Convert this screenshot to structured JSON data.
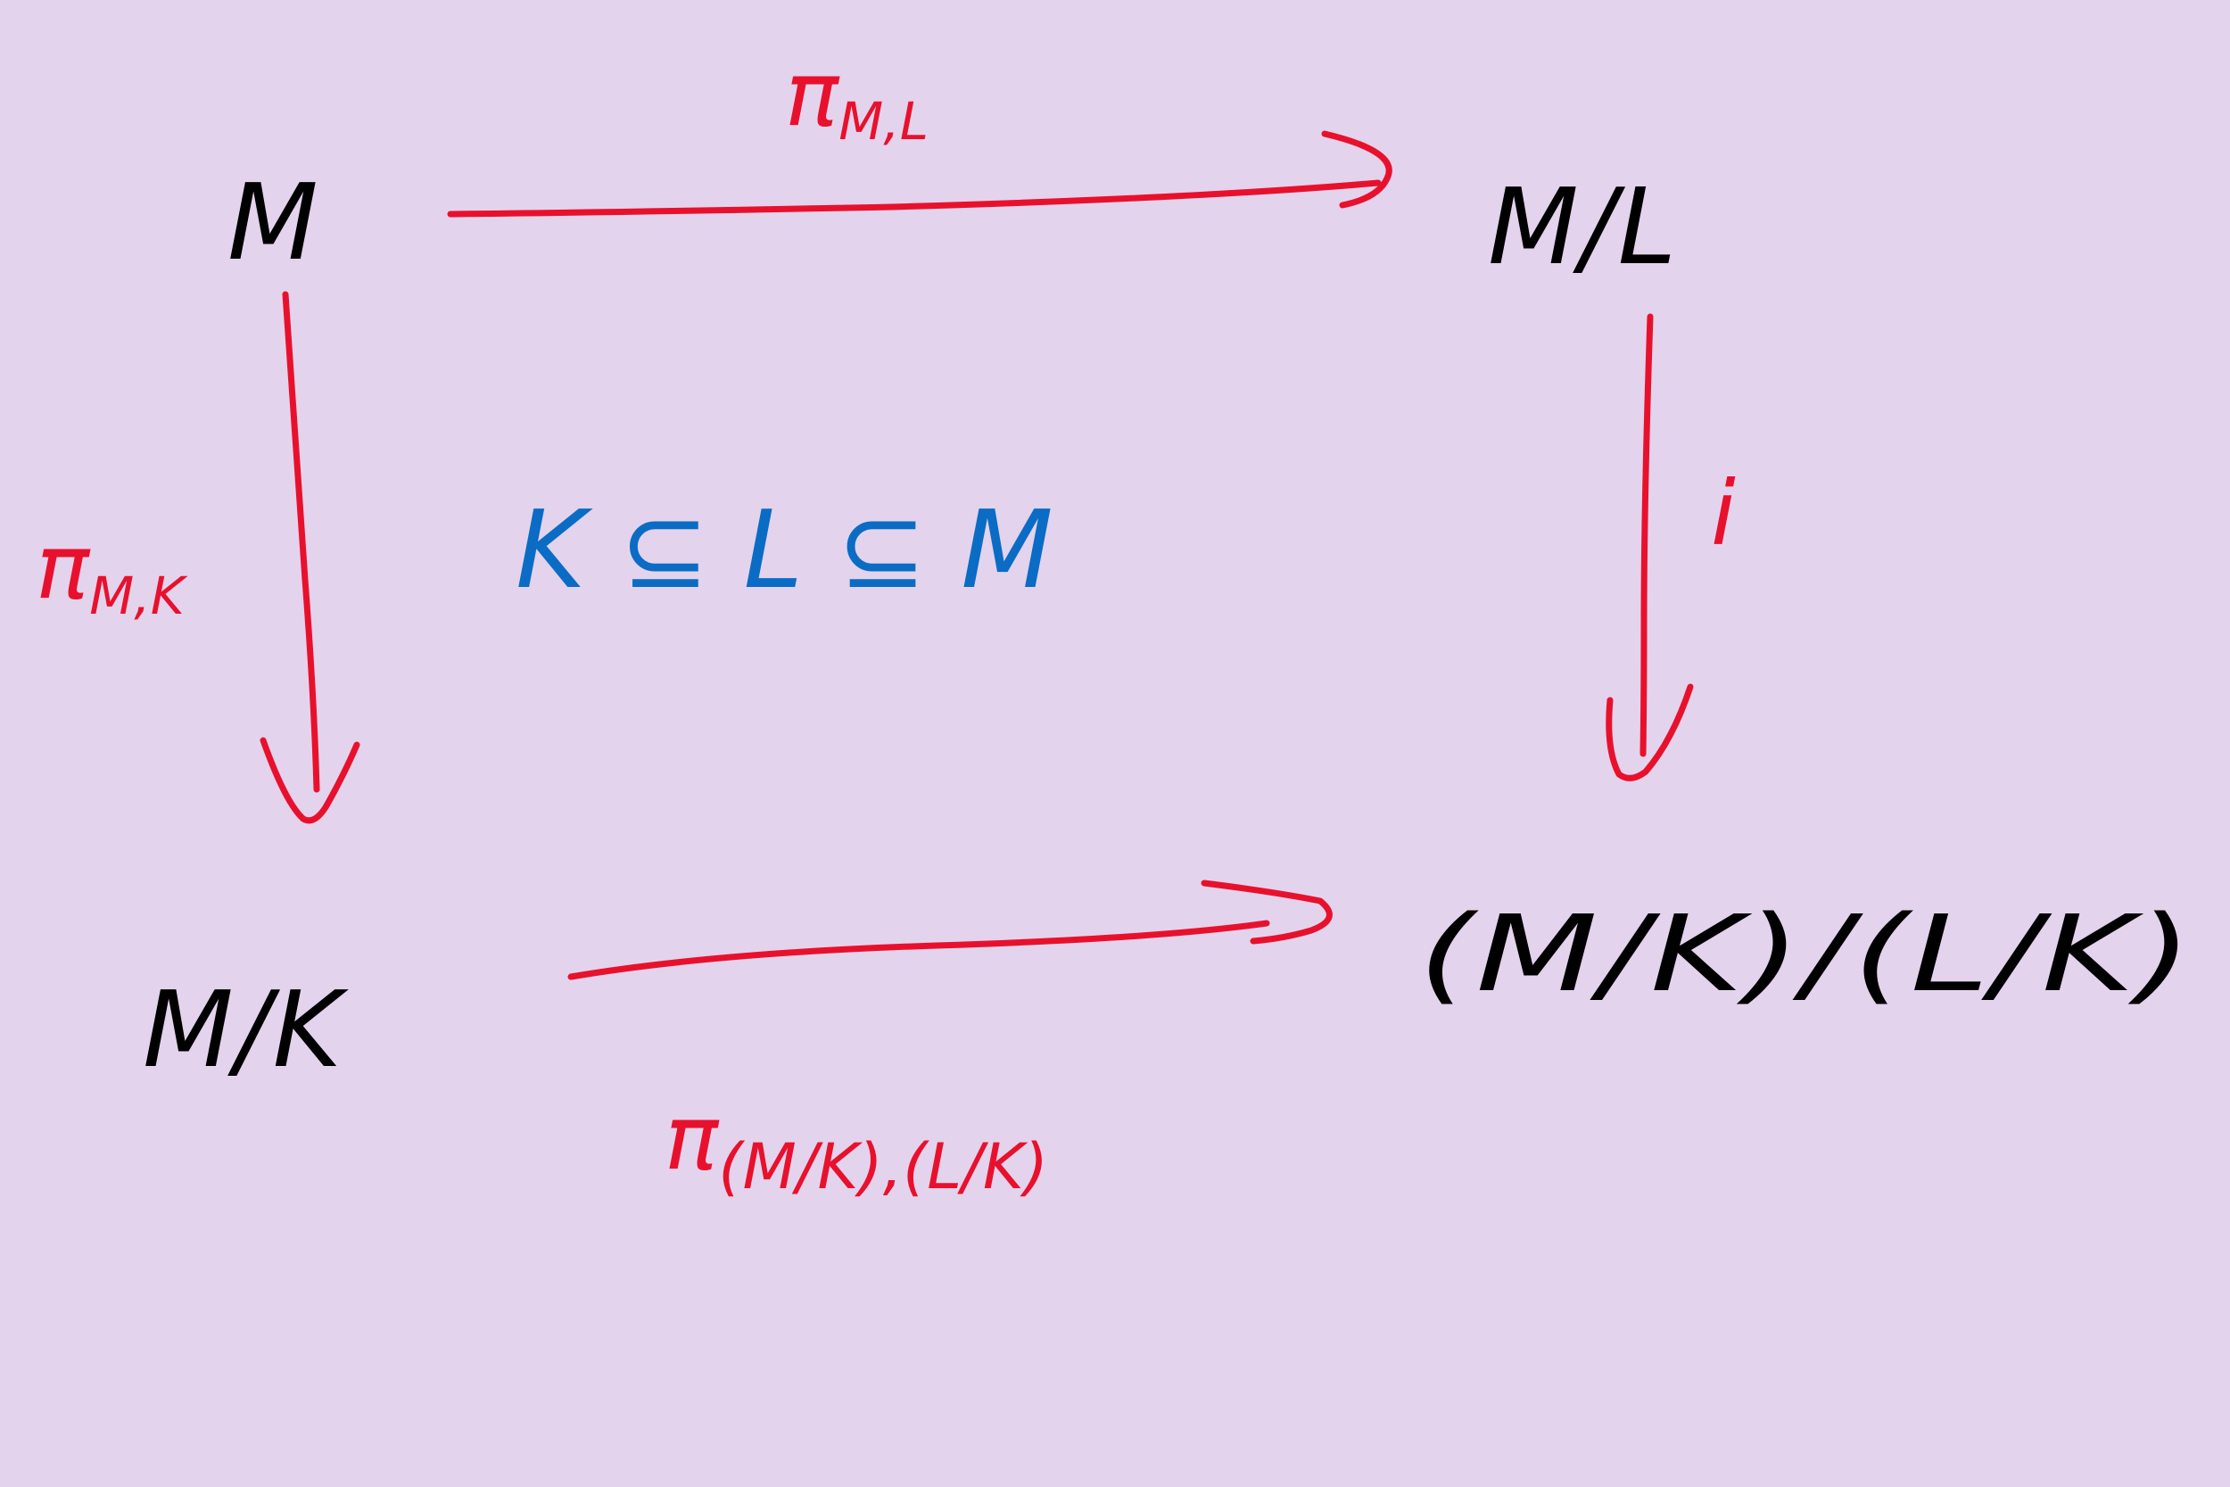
{
  "diagram": {
    "nodes": {
      "top_left": "M",
      "top_right": "M/L",
      "bottom_left": "M/K",
      "bottom_right": "(M/K)/(L/K)"
    },
    "arrows": {
      "top": {
        "label": "π",
        "subscript": "M,L"
      },
      "left": {
        "label": "π",
        "subscript": "M,K"
      },
      "right": {
        "label": "i",
        "subscript": ""
      },
      "bottom": {
        "label": "π",
        "subscript": "(M/K),(L/K)"
      }
    },
    "condition": "K ⊆ L ⊆ M"
  },
  "colors": {
    "background": "#e4d3ec",
    "node_ink": "#000000",
    "arrow_ink": "#e8112d",
    "condition_ink": "#0a6cc4"
  }
}
